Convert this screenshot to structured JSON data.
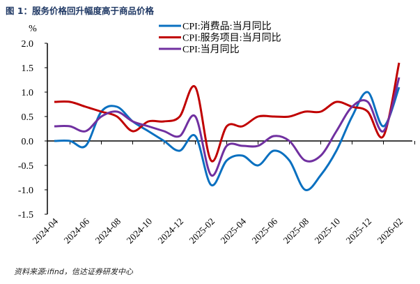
{
  "title": "图 1：服务价格回升幅度高于商品价格",
  "footer": "资料来源:ifind，信达证券研发中心",
  "chart_data": {
    "type": "line",
    "title": "图 1：服务价格回升幅度高于商品价格",
    "ylabel": "%",
    "ylim": [
      -1.5,
      2.0
    ],
    "yticks": [
      "2.0",
      "1.5",
      "1.0",
      "0.5",
      "0.0",
      "-0.5",
      "-1.0",
      "-1.5"
    ],
    "ytick_values": [
      2.0,
      1.5,
      1.0,
      0.5,
      0.0,
      -0.5,
      -1.0,
      -1.5
    ],
    "xticks": [
      "2024-04",
      "2024-06",
      "2024-08",
      "2024-10",
      "2024-12",
      "2025-02",
      "2025-04",
      "2025-06",
      "2025-08",
      "2025-10",
      "2025-12",
      "2026-02"
    ],
    "x": [
      "2024-04",
      "2024-05",
      "2024-06",
      "2024-07",
      "2024-08",
      "2024-09",
      "2024-10",
      "2024-11",
      "2024-12",
      "2025-01",
      "2025-02",
      "2025-03",
      "2025-04",
      "2025-05",
      "2025-06",
      "2025-07",
      "2025-08",
      "2025-09",
      "2025-10",
      "2025-11",
      "2025-12",
      "2026-01",
      "2026-02"
    ],
    "legend_position": "top-center",
    "grid": false,
    "series": [
      {
        "name": "CPI:消费品:当月同比",
        "color": "#0a70c0",
        "values": [
          0.0,
          0.0,
          -0.1,
          0.6,
          0.7,
          0.4,
          0.2,
          0.0,
          -0.2,
          0.1,
          -0.9,
          -0.4,
          -0.3,
          -0.5,
          -0.2,
          -0.4,
          -1.0,
          -0.7,
          -0.2,
          0.5,
          1.0,
          0.3,
          1.1
        ]
      },
      {
        "name": "CPI:服务项目:当月同比",
        "color": "#c00000",
        "values": [
          0.8,
          0.8,
          0.7,
          0.6,
          0.5,
          0.2,
          0.4,
          0.4,
          0.5,
          1.1,
          -0.4,
          0.3,
          0.3,
          0.5,
          0.5,
          0.5,
          0.6,
          0.6,
          0.8,
          0.7,
          0.6,
          0.1,
          1.6
        ]
      },
      {
        "name": "CPI:当月同比",
        "color": "#7030a0",
        "values": [
          0.3,
          0.3,
          0.2,
          0.5,
          0.6,
          0.4,
          0.3,
          0.2,
          0.1,
          0.5,
          -0.7,
          -0.1,
          -0.1,
          -0.1,
          0.1,
          0.0,
          -0.4,
          -0.3,
          0.2,
          0.7,
          0.8,
          0.2,
          1.3
        ]
      }
    ]
  }
}
